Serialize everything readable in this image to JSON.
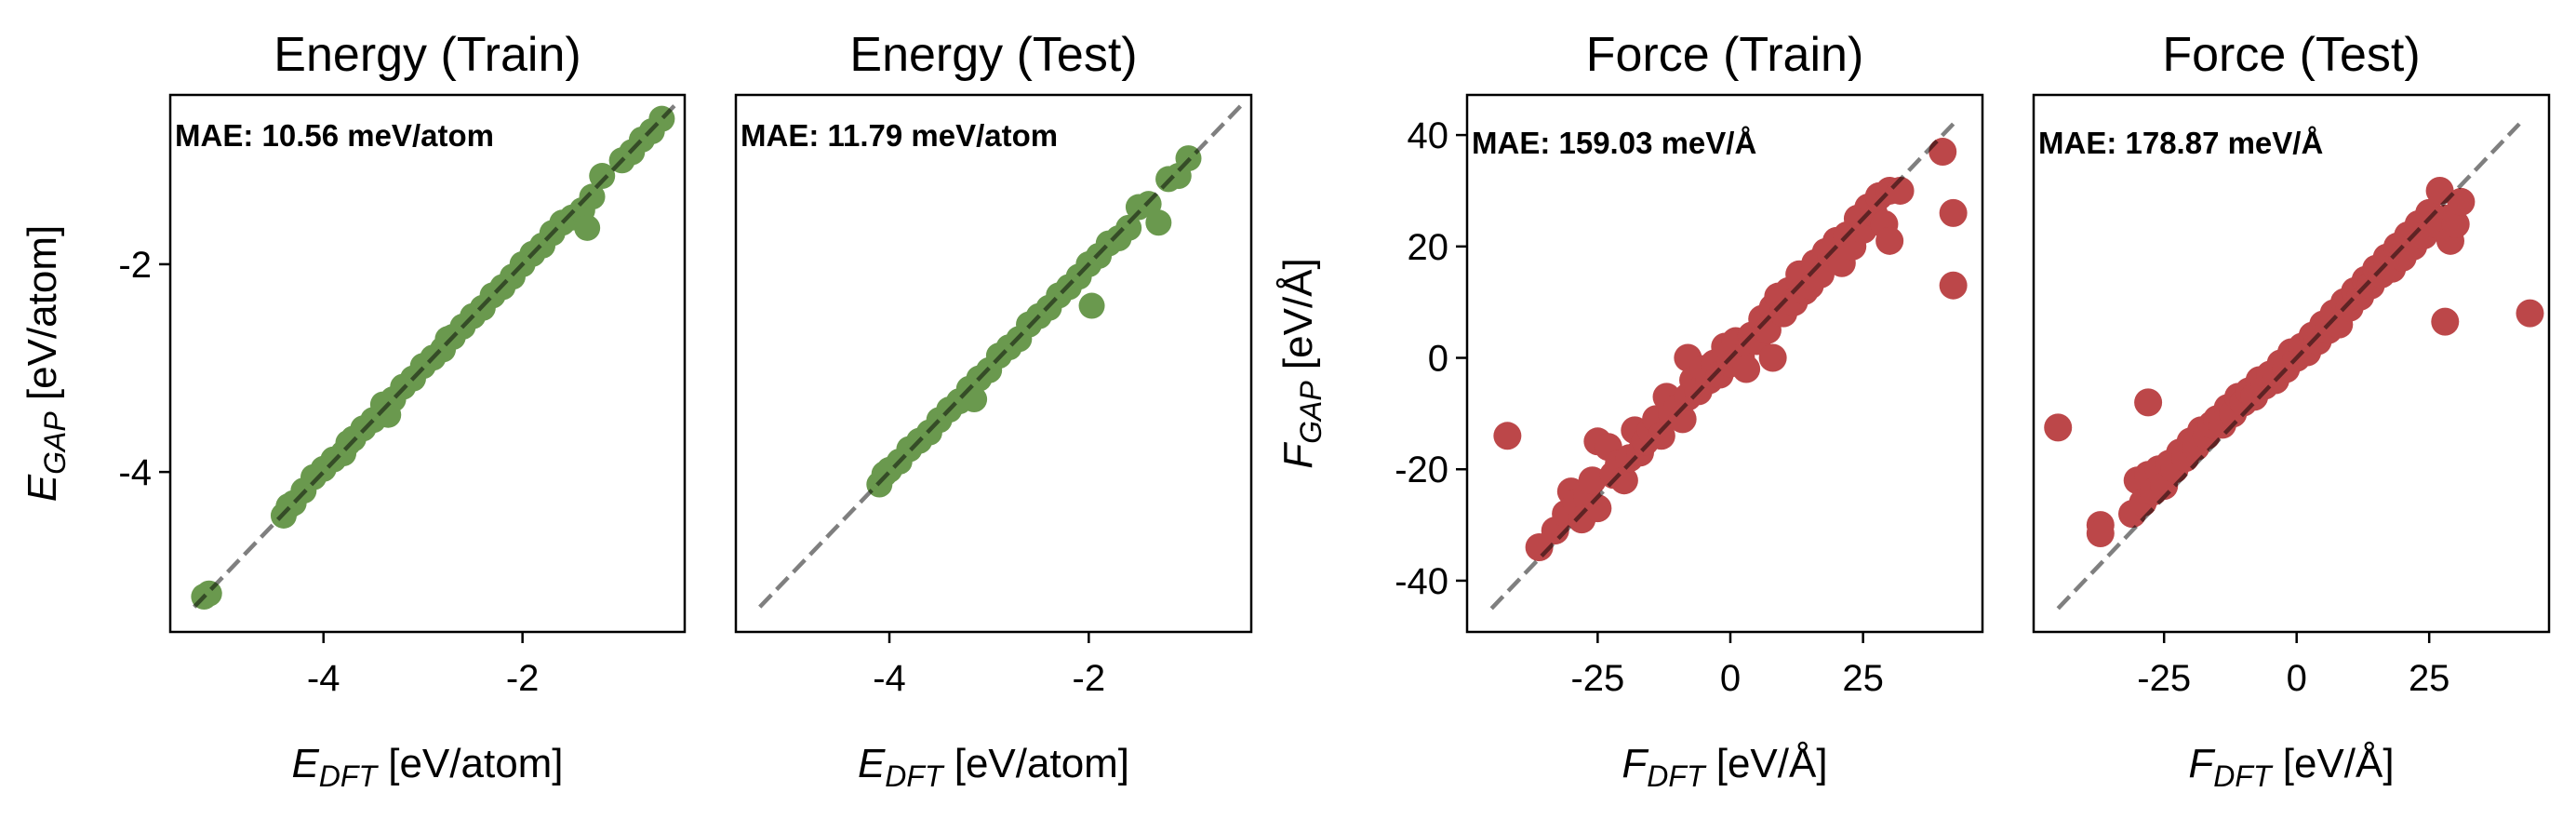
{
  "chart_data": [
    {
      "type": "scatter",
      "title": "Energy (Train)",
      "annotation": "MAE: 10.56 meV/atom",
      "xlabel": {
        "main": "E",
        "sub": "DFT",
        "unit": " [eV/atom]"
      },
      "ylabel": {
        "main": "E",
        "sub": "GAP",
        "unit": " [eV/atom]"
      },
      "xlim": [
        -5.54,
        -0.37
      ],
      "ylim": [
        -5.54,
        -0.37
      ],
      "xticks": [
        -4,
        -2
      ],
      "xtick_labels": [
        "-4",
        "-2"
      ],
      "yticks": [
        -4,
        -2
      ],
      "ytick_labels": [
        "-4",
        "-2"
      ],
      "show_yaxis": true,
      "color": "#6a994e",
      "reference_line": [
        [
          -5.3,
          -5.3
        ],
        [
          -0.45,
          -0.45
        ]
      ],
      "points": [
        [
          -5.2,
          -5.2
        ],
        [
          -5.15,
          -5.17
        ],
        [
          -4.4,
          -4.42
        ],
        [
          -4.35,
          -4.33
        ],
        [
          -4.3,
          -4.3
        ],
        [
          -4.2,
          -4.18
        ],
        [
          -4.1,
          -4.05
        ],
        [
          -4.0,
          -3.97
        ],
        [
          -3.9,
          -3.88
        ],
        [
          -3.8,
          -3.82
        ],
        [
          -3.75,
          -3.72
        ],
        [
          -3.7,
          -3.68
        ],
        [
          -3.6,
          -3.58
        ],
        [
          -3.5,
          -3.5
        ],
        [
          -3.4,
          -3.35
        ],
        [
          -3.35,
          -3.45
        ],
        [
          -3.3,
          -3.3
        ],
        [
          -3.2,
          -3.18
        ],
        [
          -3.1,
          -3.1
        ],
        [
          -3.0,
          -2.98
        ],
        [
          -2.9,
          -2.9
        ],
        [
          -2.8,
          -2.82
        ],
        [
          -2.75,
          -2.72
        ],
        [
          -2.7,
          -2.7
        ],
        [
          -2.6,
          -2.6
        ],
        [
          -2.5,
          -2.5
        ],
        [
          -2.4,
          -2.42
        ],
        [
          -2.3,
          -2.3
        ],
        [
          -2.2,
          -2.22
        ],
        [
          -2.1,
          -2.12
        ],
        [
          -2.0,
          -2.0
        ],
        [
          -1.9,
          -1.9
        ],
        [
          -1.8,
          -1.82
        ],
        [
          -1.7,
          -1.7
        ],
        [
          -1.6,
          -1.6
        ],
        [
          -1.5,
          -1.55
        ],
        [
          -1.4,
          -1.48
        ],
        [
          -1.35,
          -1.65
        ],
        [
          -1.3,
          -1.35
        ],
        [
          -1.2,
          -1.15
        ],
        [
          -1.0,
          -1.0
        ],
        [
          -0.9,
          -0.92
        ],
        [
          -0.8,
          -0.8
        ],
        [
          -0.7,
          -0.72
        ],
        [
          -0.6,
          -0.6
        ]
      ]
    },
    {
      "type": "scatter",
      "title": "Energy (Test)",
      "annotation": "MAE: 11.79 meV/atom",
      "xlabel": {
        "main": "E",
        "sub": "DFT",
        "unit": " [eV/atom]"
      },
      "ylabel": null,
      "xlim": [
        -5.54,
        -0.37
      ],
      "ylim": [
        -5.54,
        -0.37
      ],
      "xticks": [
        -4,
        -2
      ],
      "xtick_labels": [
        "-4",
        "-2"
      ],
      "yticks": [],
      "ytick_labels": [],
      "show_yaxis": false,
      "color": "#6a994e",
      "reference_line": [
        [
          -5.3,
          -5.3
        ],
        [
          -0.45,
          -0.45
        ]
      ],
      "points": [
        [
          -4.1,
          -4.12
        ],
        [
          -4.05,
          -4.02
        ],
        [
          -4.0,
          -3.98
        ],
        [
          -3.9,
          -3.9
        ],
        [
          -3.8,
          -3.78
        ],
        [
          -3.7,
          -3.7
        ],
        [
          -3.6,
          -3.62
        ],
        [
          -3.5,
          -3.5
        ],
        [
          -3.4,
          -3.4
        ],
        [
          -3.3,
          -3.32
        ],
        [
          -3.2,
          -3.2
        ],
        [
          -3.15,
          -3.3
        ],
        [
          -3.1,
          -3.1
        ],
        [
          -3.0,
          -3.02
        ],
        [
          -2.9,
          -2.88
        ],
        [
          -2.8,
          -2.8
        ],
        [
          -2.7,
          -2.72
        ],
        [
          -2.6,
          -2.58
        ],
        [
          -2.5,
          -2.5
        ],
        [
          -2.4,
          -2.42
        ],
        [
          -2.3,
          -2.3
        ],
        [
          -2.2,
          -2.22
        ],
        [
          -2.1,
          -2.12
        ],
        [
          -1.97,
          -2.4
        ],
        [
          -2.0,
          -2.0
        ],
        [
          -1.9,
          -1.92
        ],
        [
          -1.8,
          -1.8
        ],
        [
          -1.7,
          -1.75
        ],
        [
          -1.6,
          -1.65
        ],
        [
          -1.5,
          -1.45
        ],
        [
          -1.4,
          -1.42
        ],
        [
          -1.3,
          -1.6
        ],
        [
          -1.2,
          -1.18
        ],
        [
          -1.1,
          -1.15
        ],
        [
          -1.0,
          -0.98
        ]
      ]
    },
    {
      "type": "scatter",
      "title": "Force (Train)",
      "annotation": "MAE: 159.03 meV/Å",
      "xlabel": {
        "main": "F",
        "sub": "DFT",
        "unit": " [eV/Å]"
      },
      "ylabel": {
        "main": "F",
        "sub": "GAP",
        "unit": " [eV/Å]"
      },
      "xlim": [
        -49.6,
        47.5
      ],
      "ylim": [
        -49.2,
        47.2
      ],
      "xticks": [
        -25,
        0,
        25
      ],
      "xtick_labels": [
        "-25",
        "0",
        "25"
      ],
      "yticks": [
        -40,
        -20,
        0,
        20,
        40
      ],
      "ytick_labels": [
        "-40",
        "-20",
        "0",
        "20",
        "40"
      ],
      "show_yaxis": true,
      "color": "#bc4749",
      "reference_line": [
        [
          -45,
          -45
        ],
        [
          42,
          42
        ]
      ],
      "points": [
        [
          -42,
          -14
        ],
        [
          -36,
          -34
        ],
        [
          -33,
          -31
        ],
        [
          -31,
          -28
        ],
        [
          -30,
          -24
        ],
        [
          -29,
          -26
        ],
        [
          -28,
          -29
        ],
        [
          -27,
          -25
        ],
        [
          -26,
          -22
        ],
        [
          -25,
          -27
        ],
        [
          -25,
          -15
        ],
        [
          -23,
          -16
        ],
        [
          -22,
          -21
        ],
        [
          -21,
          -19
        ],
        [
          -20,
          -22
        ],
        [
          -19,
          -18
        ],
        [
          -18,
          -13
        ],
        [
          -17,
          -17
        ],
        [
          -16,
          -15
        ],
        [
          -15,
          -13
        ],
        [
          -14,
          -11
        ],
        [
          -13,
          -14
        ],
        [
          -12,
          -7
        ],
        [
          -11,
          -10
        ],
        [
          -10,
          -9
        ],
        [
          -9,
          -11
        ],
        [
          -8,
          -7
        ],
        [
          -8,
          0
        ],
        [
          -7,
          -4
        ],
        [
          -6,
          -6
        ],
        [
          -5,
          -2
        ],
        [
          -4,
          -4
        ],
        [
          -3,
          -1
        ],
        [
          -2,
          -3
        ],
        [
          -1,
          2
        ],
        [
          0,
          -1
        ],
        [
          1,
          3
        ],
        [
          2,
          0
        ],
        [
          3,
          -2
        ],
        [
          4,
          4
        ],
        [
          5,
          3
        ],
        [
          6,
          7
        ],
        [
          7,
          5
        ],
        [
          8,
          0
        ],
        [
          8,
          9
        ],
        [
          9,
          11
        ],
        [
          10,
          8
        ],
        [
          11,
          12
        ],
        [
          12,
          10
        ],
        [
          13,
          15
        ],
        [
          14,
          12
        ],
        [
          15,
          13
        ],
        [
          16,
          17
        ],
        [
          17,
          15
        ],
        [
          18,
          19
        ],
        [
          19,
          18
        ],
        [
          20,
          21
        ],
        [
          21,
          17
        ],
        [
          22,
          22
        ],
        [
          23,
          20
        ],
        [
          24,
          25
        ],
        [
          25,
          23
        ],
        [
          26,
          27
        ],
        [
          27,
          26
        ],
        [
          28,
          29
        ],
        [
          29,
          24
        ],
        [
          30,
          30
        ],
        [
          30,
          21
        ],
        [
          32,
          30
        ],
        [
          40,
          37
        ],
        [
          42,
          26
        ],
        [
          42,
          13
        ]
      ]
    },
    {
      "type": "scatter",
      "title": "Force (Test)",
      "annotation": "MAE: 178.87 meV/Å",
      "xlabel": {
        "main": "F",
        "sub": "DFT",
        "unit": " [eV/Å]"
      },
      "ylabel": null,
      "xlim": [
        -49.6,
        47.6
      ],
      "ylim": [
        -49.2,
        47.2
      ],
      "xticks": [
        -25,
        0,
        25
      ],
      "xtick_labels": [
        "-25",
        "0",
        "25"
      ],
      "yticks": [],
      "ytick_labels": [],
      "show_yaxis": false,
      "color": "#bc4749",
      "reference_line": [
        [
          -45,
          -45
        ],
        [
          42,
          42
        ]
      ],
      "points": [
        [
          -45,
          -12.5
        ],
        [
          -28,
          -8
        ],
        [
          -37,
          -30
        ],
        [
          -37,
          -31.5
        ],
        [
          -31,
          -28
        ],
        [
          -30,
          -22
        ],
        [
          -29,
          -26
        ],
        [
          -28,
          -21
        ],
        [
          -27,
          -24
        ],
        [
          -26,
          -20
        ],
        [
          -25,
          -23
        ],
        [
          -24,
          -19
        ],
        [
          -23,
          -20
        ],
        [
          -22,
          -17
        ],
        [
          -21,
          -18
        ],
        [
          -20,
          -15
        ],
        [
          -19,
          -16
        ],
        [
          -18,
          -13
        ],
        [
          -17,
          -14
        ],
        [
          -16,
          -12
        ],
        [
          -15,
          -11
        ],
        [
          -14,
          -12
        ],
        [
          -13,
          -9
        ],
        [
          -12,
          -10
        ],
        [
          -11,
          -7
        ],
        [
          -10,
          -8
        ],
        [
          -9,
          -6
        ],
        [
          -8,
          -7
        ],
        [
          -7,
          -4
        ],
        [
          -6,
          -5
        ],
        [
          -5,
          -3
        ],
        [
          -4,
          -4
        ],
        [
          -3,
          -1
        ],
        [
          -2,
          -2
        ],
        [
          -1,
          1
        ],
        [
          0,
          0
        ],
        [
          1,
          2
        ],
        [
          2,
          1
        ],
        [
          3,
          4
        ],
        [
          4,
          3
        ],
        [
          5,
          6
        ],
        [
          6,
          5
        ],
        [
          7,
          8
        ],
        [
          8,
          6
        ],
        [
          9,
          10
        ],
        [
          10,
          9
        ],
        [
          11,
          12
        ],
        [
          12,
          11
        ],
        [
          13,
          14
        ],
        [
          14,
          13
        ],
        [
          15,
          16
        ],
        [
          16,
          15
        ],
        [
          17,
          18
        ],
        [
          18,
          16
        ],
        [
          19,
          20
        ],
        [
          20,
          18
        ],
        [
          21,
          22
        ],
        [
          22,
          20
        ],
        [
          23,
          24
        ],
        [
          24,
          22
        ],
        [
          25,
          26
        ],
        [
          26,
          24
        ],
        [
          27,
          30
        ],
        [
          28,
          25
        ],
        [
          29,
          21
        ],
        [
          30,
          24
        ],
        [
          31,
          28
        ],
        [
          28,
          6.5
        ],
        [
          44,
          8
        ]
      ]
    }
  ]
}
